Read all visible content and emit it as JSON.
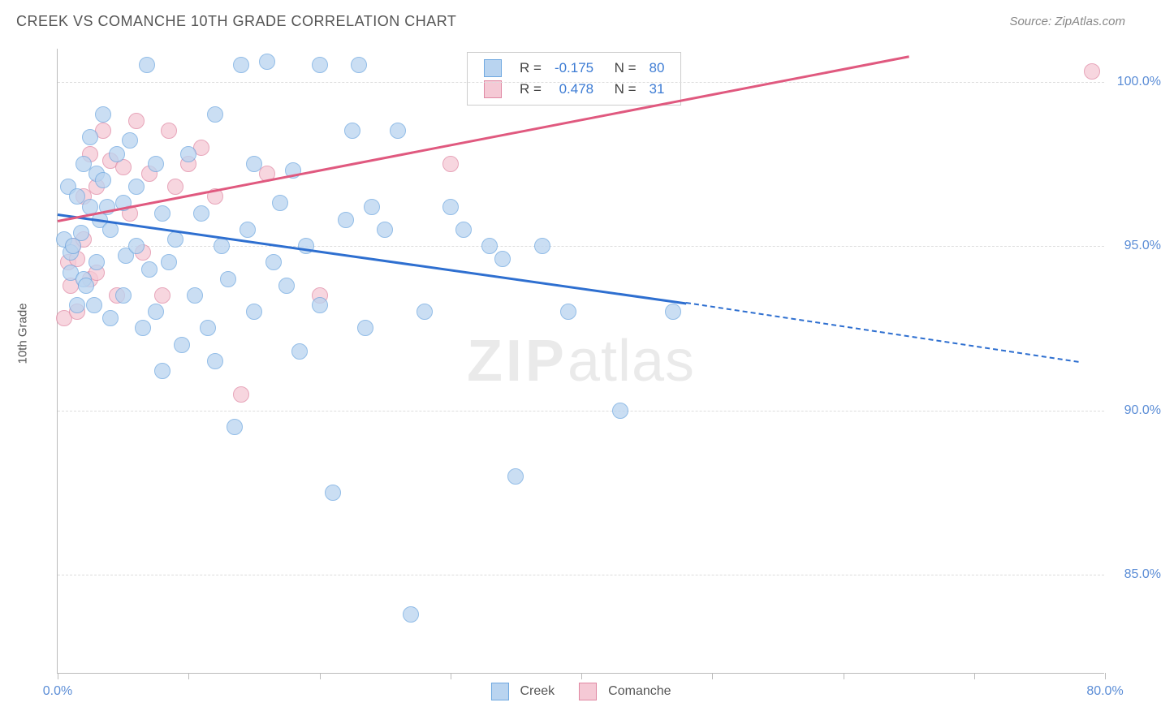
{
  "header": {
    "title": "CREEK VS COMANCHE 10TH GRADE CORRELATION CHART",
    "source": "Source: ZipAtlas.com"
  },
  "axes": {
    "y_label": "10th Grade",
    "x_min": 0,
    "x_max": 80,
    "y_min": 82,
    "y_max": 101,
    "y_ticks": [
      85,
      90,
      95,
      100
    ],
    "y_tick_labels": [
      "85.0%",
      "90.0%",
      "95.0%",
      "100.0%"
    ],
    "x_ticks": [
      0,
      10,
      20,
      30,
      40,
      50,
      60,
      70,
      80
    ],
    "x_tick_labels": {
      "0": "0.0%",
      "80": "80.0%"
    }
  },
  "series": {
    "creek": {
      "label": "Creek",
      "marker_fill": "#b9d4f0",
      "marker_stroke": "#6fa8e0",
      "line_color": "#2e6fd0",
      "r_value": "-0.175",
      "n_value": "80",
      "trend": {
        "x1": 0,
        "y1": 96.0,
        "x2": 48,
        "y2": 93.3,
        "x2_dash": 78,
        "y2_dash": 91.5
      },
      "points": [
        [
          0.5,
          95.2
        ],
        [
          0.8,
          96.8
        ],
        [
          1,
          94.2
        ],
        [
          1,
          94.8
        ],
        [
          1.2,
          95.0
        ],
        [
          1.5,
          93.2
        ],
        [
          1.5,
          96.5
        ],
        [
          1.8,
          95.4
        ],
        [
          2,
          94.0
        ],
        [
          2,
          97.5
        ],
        [
          2.2,
          93.8
        ],
        [
          2.5,
          96.2
        ],
        [
          2.5,
          98.3
        ],
        [
          2.8,
          93.2
        ],
        [
          3,
          97.2
        ],
        [
          3,
          94.5
        ],
        [
          3.2,
          95.8
        ],
        [
          3.5,
          97.0
        ],
        [
          3.5,
          99.0
        ],
        [
          3.8,
          96.2
        ],
        [
          4,
          92.8
        ],
        [
          4,
          95.5
        ],
        [
          4.5,
          97.8
        ],
        [
          5,
          93.5
        ],
        [
          5,
          96.3
        ],
        [
          5.2,
          94.7
        ],
        [
          5.5,
          98.2
        ],
        [
          6,
          95.0
        ],
        [
          6,
          96.8
        ],
        [
          6.5,
          92.5
        ],
        [
          6.8,
          100.5
        ],
        [
          7,
          94.3
        ],
        [
          7.5,
          93.0
        ],
        [
          7.5,
          97.5
        ],
        [
          8,
          91.2
        ],
        [
          8,
          96.0
        ],
        [
          8.5,
          94.5
        ],
        [
          9,
          95.2
        ],
        [
          9.5,
          92.0
        ],
        [
          10,
          97.8
        ],
        [
          10.5,
          93.5
        ],
        [
          11,
          96.0
        ],
        [
          11.5,
          92.5
        ],
        [
          12,
          91.5
        ],
        [
          12,
          99.0
        ],
        [
          12.5,
          95.0
        ],
        [
          13,
          94.0
        ],
        [
          13.5,
          89.5
        ],
        [
          14,
          100.5
        ],
        [
          14.5,
          95.5
        ],
        [
          15,
          93.0
        ],
        [
          15,
          97.5
        ],
        [
          16,
          100.6
        ],
        [
          16.5,
          94.5
        ],
        [
          17,
          96.3
        ],
        [
          17.5,
          93.8
        ],
        [
          18,
          97.3
        ],
        [
          18.5,
          91.8
        ],
        [
          19,
          95.0
        ],
        [
          20,
          93.2
        ],
        [
          20,
          100.5
        ],
        [
          21,
          87.5
        ],
        [
          22,
          95.8
        ],
        [
          22.5,
          98.5
        ],
        [
          23,
          100.5
        ],
        [
          23.5,
          92.5
        ],
        [
          24,
          96.2
        ],
        [
          25,
          95.5
        ],
        [
          26,
          98.5
        ],
        [
          27,
          83.8
        ],
        [
          28,
          93.0
        ],
        [
          30,
          96.2
        ],
        [
          31,
          95.5
        ],
        [
          33,
          95.0
        ],
        [
          34,
          94.6
        ],
        [
          35,
          88.0
        ],
        [
          37,
          95.0
        ],
        [
          39,
          93.0
        ],
        [
          43,
          90.0
        ],
        [
          47,
          93.0
        ]
      ]
    },
    "comanche": {
      "label": "Comanche",
      "marker_fill": "#f5c9d5",
      "marker_stroke": "#e088a3",
      "line_color": "#e0597f",
      "r_value": "0.478",
      "n_value": "31",
      "trend": {
        "x1": 0,
        "y1": 95.8,
        "x2": 65,
        "y2": 100.8
      },
      "points": [
        [
          0.5,
          92.8
        ],
        [
          0.8,
          94.5
        ],
        [
          1,
          93.8
        ],
        [
          1.2,
          95.0
        ],
        [
          1.5,
          94.6
        ],
        [
          1.5,
          93.0
        ],
        [
          2,
          95.2
        ],
        [
          2,
          96.5
        ],
        [
          2.5,
          94.0
        ],
        [
          2.5,
          97.8
        ],
        [
          3,
          96.8
        ],
        [
          3,
          94.2
        ],
        [
          3.5,
          98.5
        ],
        [
          4,
          97.6
        ],
        [
          4.5,
          93.5
        ],
        [
          5,
          97.4
        ],
        [
          5.5,
          96.0
        ],
        [
          6,
          98.8
        ],
        [
          6.5,
          94.8
        ],
        [
          7,
          97.2
        ],
        [
          8,
          93.5
        ],
        [
          8.5,
          98.5
        ],
        [
          9,
          96.8
        ],
        [
          10,
          97.5
        ],
        [
          11,
          98.0
        ],
        [
          12,
          96.5
        ],
        [
          14,
          90.5
        ],
        [
          16,
          97.2
        ],
        [
          20,
          93.5
        ],
        [
          30,
          97.5
        ],
        [
          79,
          100.3
        ]
      ]
    }
  },
  "legend_stats_header": {
    "r": "R =",
    "n": "N ="
  },
  "watermark": {
    "zip": "ZIP",
    "atlas": "atlas"
  },
  "style": {
    "marker_radius": 10,
    "marker_opacity": 0.75,
    "grid_color": "#dddddd",
    "axis_color": "#bbbbbb",
    "tick_text_color": "#5b8dd6",
    "value_text_color": "#3d7cd4"
  }
}
